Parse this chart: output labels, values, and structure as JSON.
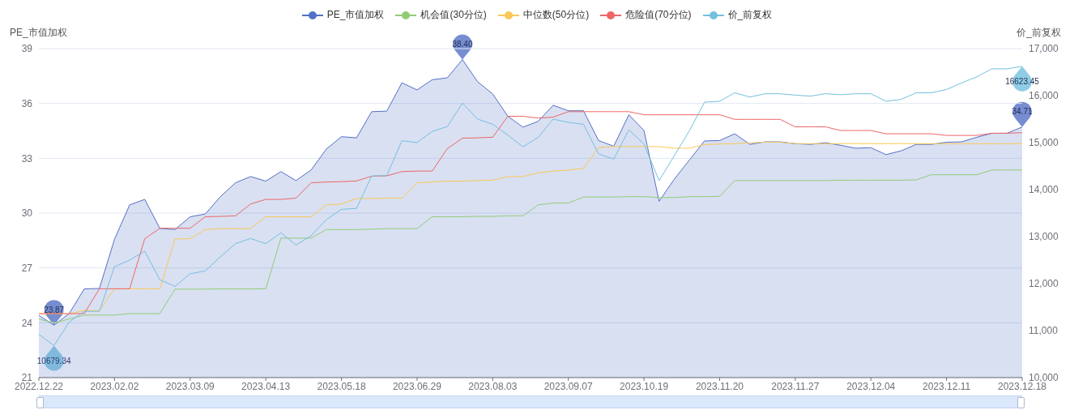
{
  "chart_data": {
    "type": "line",
    "ylabel": "PE_市值加权",
    "y2label": "价_前复权",
    "categories": [
      "2022.12.22",
      null,
      null,
      null,
      null,
      "2023.02.02",
      null,
      null,
      null,
      null,
      "2023.03.09",
      null,
      null,
      null,
      null,
      "2023.04.13",
      null,
      null,
      null,
      null,
      "2023.05.18",
      null,
      null,
      null,
      null,
      "2023.06.29",
      null,
      null,
      null,
      null,
      "2023.08.03",
      null,
      null,
      null,
      null,
      "2023.09.07",
      null,
      null,
      null,
      null,
      "2023.10.19",
      null,
      null,
      null,
      null,
      "2023.11.20",
      null,
      null,
      null,
      null,
      "2023.11.27",
      null,
      null,
      null,
      null,
      "2023.12.04",
      null,
      null,
      null,
      null,
      "2023.12.11",
      null,
      null,
      null,
      null,
      "2023.12.18"
    ],
    "series": [
      {
        "name": "PE_市值加权",
        "type": "area",
        "color": "#5470c6",
        "values": [
          24.4,
          23.87,
          24.5,
          25.85,
          25.88,
          28.57,
          30.45,
          30.75,
          29.16,
          29.1,
          29.8,
          29.95,
          30.9,
          31.66,
          32.0,
          31.75,
          32.27,
          31.78,
          32.36,
          33.5,
          34.18,
          34.12,
          35.55,
          35.58,
          37.13,
          36.74,
          37.3,
          37.4,
          38.4,
          37.19,
          36.52,
          35.3,
          34.7,
          35.02,
          35.9,
          35.6,
          35.6,
          33.97,
          33.66,
          35.38,
          34.52,
          30.65,
          31.85,
          32.9,
          33.95,
          33.97,
          34.34,
          33.76,
          33.9,
          33.9,
          33.8,
          33.76,
          33.85,
          33.71,
          33.55,
          33.58,
          33.2,
          33.41,
          33.76,
          33.76,
          33.88,
          33.9,
          34.15,
          34.37,
          34.37,
          34.71
        ],
        "value_labels": [
          null,
          "23.87",
          null,
          null,
          null,
          null,
          null,
          null,
          null,
          null,
          null,
          null,
          null,
          null,
          null,
          null,
          null,
          null,
          null,
          null,
          null,
          null,
          null,
          null,
          null,
          null,
          null,
          null,
          "38.40",
          null,
          null,
          null,
          null,
          null,
          null,
          null,
          null,
          null,
          null,
          null,
          null,
          null,
          null,
          null,
          null,
          null,
          null,
          null,
          null,
          null,
          null,
          null,
          null,
          null,
          null,
          null,
          null,
          null,
          null,
          null,
          null,
          null,
          null,
          null,
          null,
          "34.71"
        ]
      },
      {
        "name": "机会值(30分位)",
        "color": "#91cc75",
        "values": [
          24.2,
          24.0,
          24.2,
          24.42,
          24.42,
          24.42,
          24.5,
          24.5,
          24.5,
          25.84,
          25.84,
          25.84,
          25.85,
          25.85,
          25.85,
          25.86,
          28.63,
          28.63,
          28.63,
          29.1,
          29.1,
          29.1,
          29.12,
          29.15,
          29.15,
          29.15,
          29.8,
          29.8,
          29.8,
          29.82,
          29.82,
          29.85,
          29.85,
          30.45,
          30.55,
          30.55,
          30.88,
          30.88,
          30.88,
          30.9,
          30.9,
          30.85,
          30.85,
          30.9,
          30.9,
          30.92,
          31.78,
          31.78,
          31.78,
          31.78,
          31.78,
          31.78,
          31.78,
          31.8,
          31.8,
          31.8,
          31.8,
          31.8,
          31.82,
          32.1,
          32.1,
          32.1,
          32.1,
          32.36,
          32.36,
          32.36
        ]
      },
      {
        "name": "中位数(50分位)",
        "color": "#fac858",
        "values": [
          24.49,
          24.49,
          24.49,
          24.67,
          24.67,
          25.86,
          25.86,
          25.86,
          25.86,
          28.58,
          28.6,
          29.1,
          29.15,
          29.15,
          29.15,
          29.8,
          29.8,
          29.8,
          29.8,
          30.45,
          30.5,
          30.8,
          30.8,
          30.82,
          30.82,
          31.66,
          31.7,
          31.75,
          31.75,
          31.78,
          31.8,
          32.0,
          32.0,
          32.2,
          32.3,
          32.35,
          32.45,
          33.59,
          33.64,
          33.64,
          33.64,
          33.64,
          33.55,
          33.55,
          33.75,
          33.78,
          33.8,
          33.85,
          33.88,
          33.88,
          33.8,
          33.8,
          33.8,
          33.8,
          33.8,
          33.8,
          33.8,
          33.8,
          33.8,
          33.8,
          33.8,
          33.8,
          33.8,
          33.8,
          33.8,
          33.8
        ]
      },
      {
        "name": "危险值(70分位)",
        "color": "#ee6666",
        "values": [
          24.5,
          24.5,
          24.5,
          24.5,
          25.86,
          25.86,
          25.86,
          28.6,
          29.17,
          29.17,
          29.17,
          29.8,
          29.82,
          29.85,
          30.5,
          30.75,
          30.75,
          30.82,
          31.66,
          31.7,
          31.72,
          31.76,
          32.02,
          32.04,
          32.27,
          32.3,
          32.3,
          33.53,
          34.1,
          34.12,
          34.15,
          35.3,
          35.3,
          35.2,
          35.25,
          35.55,
          35.55,
          35.55,
          35.55,
          35.55,
          35.38,
          35.38,
          35.38,
          35.38,
          35.38,
          35.38,
          35.13,
          35.13,
          35.13,
          35.13,
          34.72,
          34.72,
          34.72,
          34.52,
          34.52,
          34.52,
          34.34,
          34.34,
          34.34,
          34.34,
          34.25,
          34.25,
          34.25,
          34.37,
          34.37,
          34.4
        ]
      },
      {
        "name": "价_前复权",
        "axis": "y2",
        "color": "#73c0de",
        "values": [
          10920,
          10679.34,
          11180,
          11410,
          11410,
          12360,
          12500,
          12690,
          12080,
          11940,
          12210,
          12270,
          12570,
          12850,
          12960,
          12850,
          13080,
          12820,
          13020,
          13360,
          13580,
          13600,
          14290,
          14300,
          15040,
          15000,
          15240,
          15340,
          15840,
          15500,
          15390,
          15160,
          14910,
          15110,
          15500,
          15430,
          15390,
          14760,
          14650,
          15270,
          14970,
          14190,
          14720,
          15250,
          15860,
          15880,
          16060,
          15970,
          16040,
          16040,
          16010,
          15990,
          16040,
          16020,
          16040,
          16040,
          15880,
          15920,
          16060,
          16060,
          16130,
          16270,
          16400,
          16570,
          16570,
          16623.45
        ],
        "value_labels": [
          null,
          "10679.34",
          null,
          null,
          null,
          null,
          null,
          null,
          null,
          null,
          null,
          null,
          null,
          null,
          null,
          null,
          null,
          null,
          null,
          null,
          null,
          null,
          null,
          null,
          null,
          null,
          null,
          null,
          null,
          null,
          null,
          null,
          null,
          null,
          null,
          null,
          null,
          null,
          null,
          null,
          null,
          null,
          null,
          null,
          null,
          null,
          null,
          null,
          null,
          null,
          null,
          null,
          null,
          null,
          null,
          null,
          null,
          null,
          null,
          null,
          null,
          null,
          null,
          null,
          null,
          "16623.45"
        ]
      }
    ],
    "ylim": [
      21,
      39
    ],
    "yticks": [
      21,
      24,
      27,
      30,
      33,
      36,
      39
    ],
    "y2lim": [
      10000,
      17000
    ],
    "y2ticks": [
      {
        "value": 10000,
        "label": "10,000"
      },
      {
        "value": 11000,
        "label": "11,000"
      },
      {
        "value": 12000,
        "label": "12,000"
      },
      {
        "value": 13000,
        "label": "13,000"
      },
      {
        "value": 14000,
        "label": "14,000"
      },
      {
        "value": 15000,
        "label": "15,000"
      },
      {
        "value": 16000,
        "label": "16,000"
      },
      {
        "value": 17000,
        "label": "17,000"
      }
    ],
    "grid": "y",
    "legend": "top"
  }
}
